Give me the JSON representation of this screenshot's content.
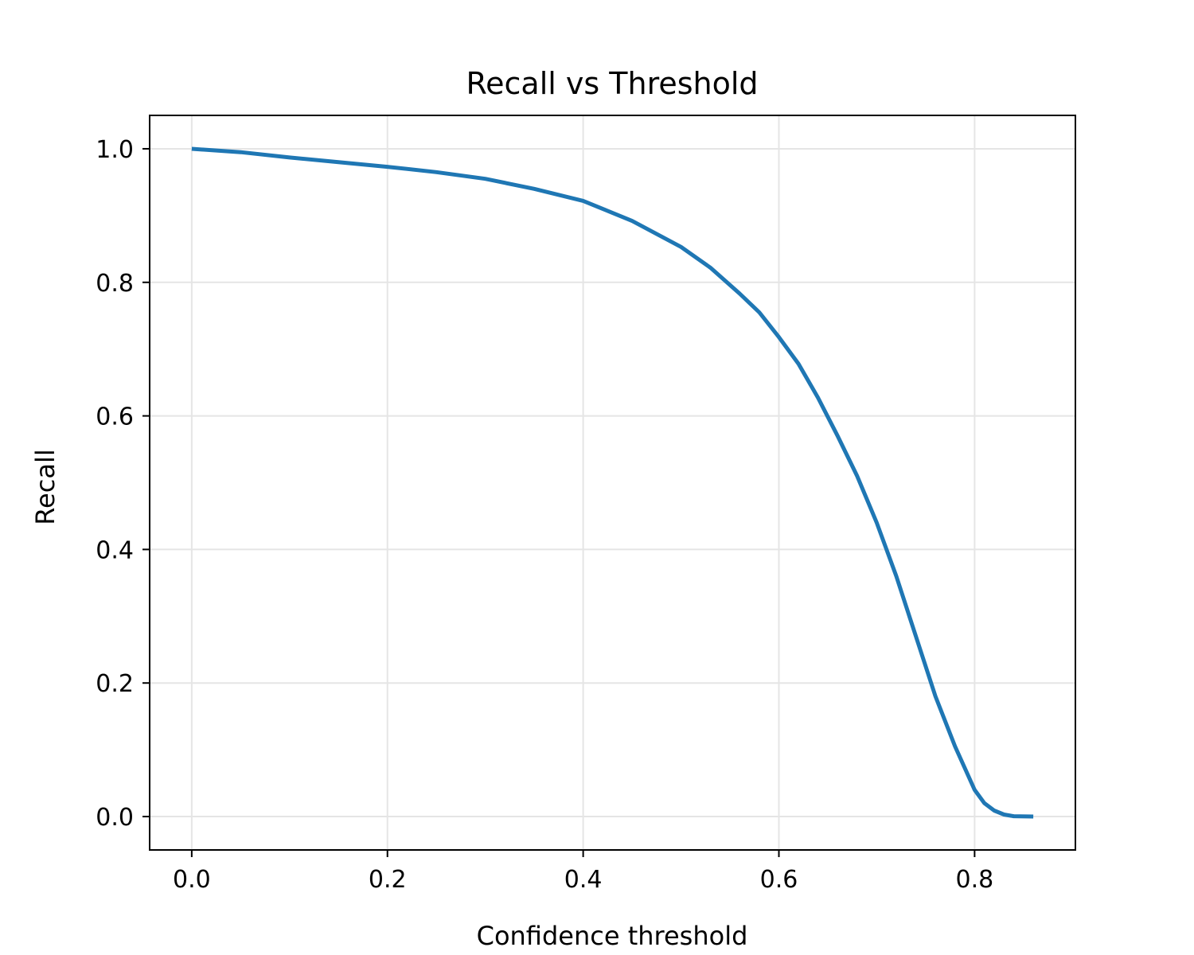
{
  "chart_data": {
    "type": "line",
    "title": "Recall vs Threshold",
    "xlabel": "Confidence threshold",
    "ylabel": "Recall",
    "xlim": [
      -0.043,
      0.903
    ],
    "ylim": [
      -0.05,
      1.05
    ],
    "grid": true,
    "x_ticks": [
      0.0,
      0.2,
      0.4,
      0.6,
      0.8
    ],
    "x_tick_labels": [
      "0.0",
      "0.2",
      "0.4",
      "0.6",
      "0.8"
    ],
    "y_ticks": [
      0.0,
      0.2,
      0.4,
      0.6,
      0.8,
      1.0
    ],
    "y_tick_labels": [
      "0.0",
      "0.2",
      "0.4",
      "0.6",
      "0.8",
      "1.0"
    ],
    "colors": {
      "line": "#1f77b4",
      "grid": "#e5e5e5",
      "axes": "#000000"
    },
    "series": [
      {
        "x": [
          0.0,
          0.05,
          0.1,
          0.15,
          0.2,
          0.25,
          0.3,
          0.35,
          0.4,
          0.45,
          0.5,
          0.53,
          0.56,
          0.58,
          0.6,
          0.62,
          0.64,
          0.66,
          0.68,
          0.7,
          0.72,
          0.74,
          0.76,
          0.78,
          0.8,
          0.81,
          0.82,
          0.83,
          0.84,
          0.86
        ],
        "y": [
          1.0,
          0.995,
          0.987,
          0.98,
          0.973,
          0.965,
          0.955,
          0.94,
          0.922,
          0.892,
          0.853,
          0.822,
          0.783,
          0.755,
          0.718,
          0.678,
          0.627,
          0.57,
          0.51,
          0.44,
          0.36,
          0.27,
          0.18,
          0.105,
          0.04,
          0.02,
          0.009,
          0.003,
          0.0005,
          0.0
        ]
      }
    ]
  }
}
